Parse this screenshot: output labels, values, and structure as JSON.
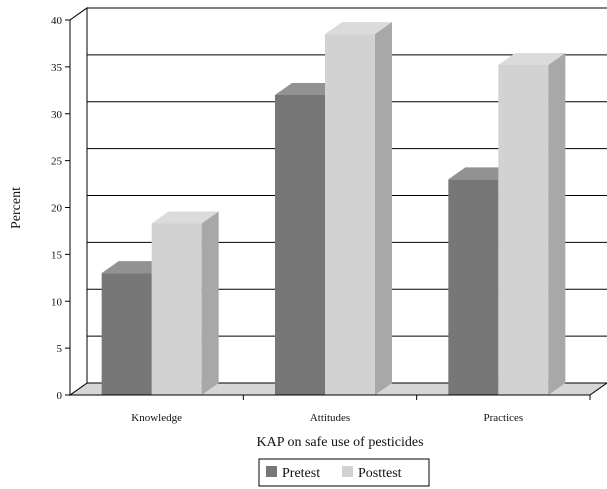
{
  "chart_data": {
    "type": "bar",
    "style": "3d-column",
    "categories": [
      "Knowledge",
      "Attitudes",
      "Practices"
    ],
    "series": [
      {
        "name": "Pretest",
        "values": [
          13,
          32,
          23
        ],
        "color": "#777777"
      },
      {
        "name": "Posttest",
        "values": [
          18.3,
          38.5,
          35.2
        ],
        "color": "#d2d2d2"
      }
    ],
    "xlabel": "KAP on safe use of pesticides",
    "ylabel": "Percent",
    "ylim": [
      0,
      40
    ],
    "yticks": [
      "0",
      "5",
      "10",
      "15",
      "20",
      "25",
      "30",
      "35",
      "40"
    ],
    "grid": true,
    "legend_position": "bottom"
  }
}
